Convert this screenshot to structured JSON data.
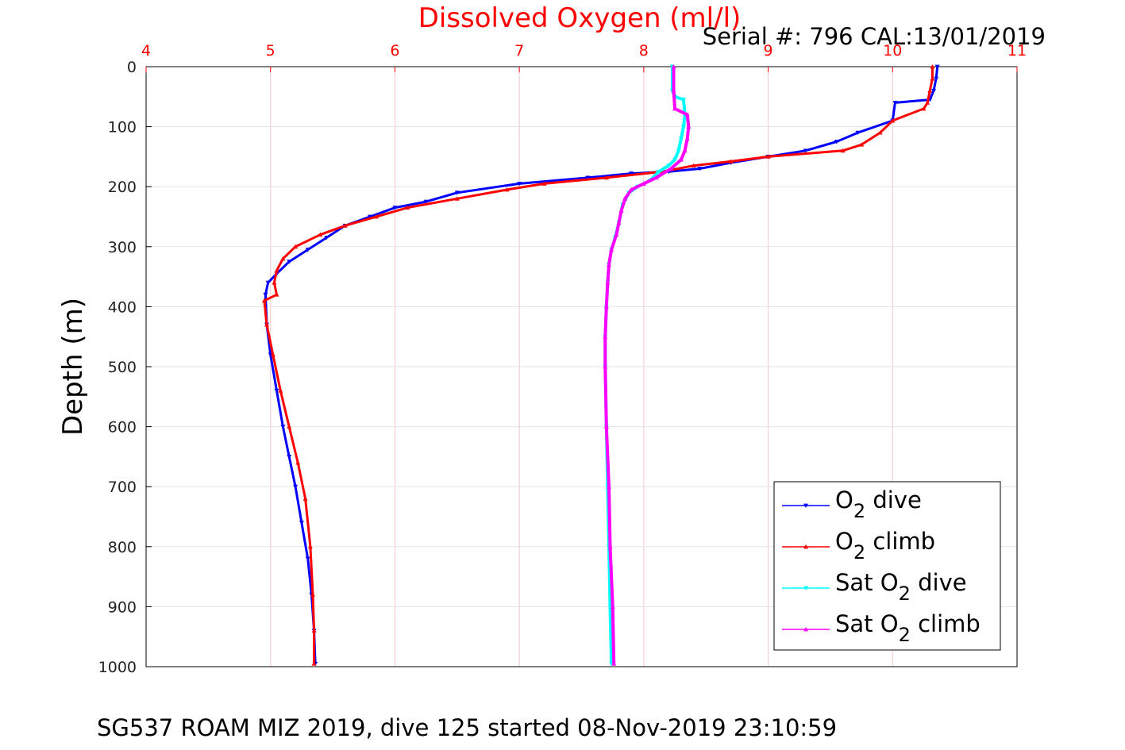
{
  "chart_data": {
    "type": "line",
    "title": "Dissolved Oxygen (ml/l)",
    "subtitle": "Serial #: 796  CAL:13/01/2019",
    "ylabel": "Depth (m)",
    "footer": "SG537 ROAM MIZ 2019, dive 125 started 08-Nov-2019 23:10:59",
    "xlim": [
      4,
      11
    ],
    "ylim": [
      0,
      1000
    ],
    "y_reversed": true,
    "x_axis_position": "top",
    "grid": true,
    "xticks": [
      "4",
      "5",
      "6",
      "7",
      "8",
      "9",
      "10",
      "11"
    ],
    "yticks": [
      "0",
      "100",
      "200",
      "300",
      "400",
      "500",
      "600",
      "700",
      "800",
      "900",
      "1000"
    ],
    "legend": {
      "placement": "lower-right",
      "entries": [
        {
          "prefix": "O",
          "sub": "2",
          "suffix": " dive"
        },
        {
          "prefix": "O",
          "sub": "2",
          "suffix": " climb"
        },
        {
          "prefix": "Sat O",
          "sub": "2",
          "suffix": " dive"
        },
        {
          "prefix": "Sat O",
          "sub": "2",
          "suffix": " climb"
        }
      ]
    },
    "colors": {
      "title": "#ff0000",
      "xtick": "#ff0000",
      "grid": "#f5c6cc",
      "o2_dive": "#0000ff",
      "o2_climb": "#ff0000",
      "sat_dive": "#00ffff",
      "sat_climb": "#ff00ff"
    },
    "series": [
      {
        "key": "o2_dive",
        "marker": "triangle-down",
        "x": [
          10.36,
          10.35,
          10.33,
          10.3,
          10.02,
          10.0,
          9.72,
          9.55,
          9.3,
          9.0,
          8.7,
          8.45,
          8.2,
          7.9,
          7.55,
          7.0,
          6.5,
          6.25,
          6.0,
          5.8,
          5.6,
          5.45,
          5.3,
          5.15,
          5.05,
          4.98,
          4.96,
          4.97,
          5.0,
          5.05,
          5.1,
          5.15,
          5.2,
          5.25,
          5.3,
          5.33,
          5.35,
          5.36
        ],
        "y": [
          0,
          20,
          40,
          55,
          60,
          90,
          110,
          125,
          140,
          150,
          160,
          170,
          175,
          178,
          185,
          195,
          210,
          225,
          235,
          250,
          265,
          285,
          305,
          325,
          345,
          360,
          380,
          430,
          480,
          540,
          600,
          650,
          700,
          760,
          820,
          880,
          940,
          995
        ]
      },
      {
        "key": "o2_climb",
        "marker": "triangle-up",
        "x": [
          10.32,
          10.32,
          10.3,
          10.28,
          10.25,
          10.0,
          9.9,
          9.75,
          9.6,
          9.0,
          8.7,
          8.4,
          8.15,
          7.7,
          7.2,
          6.9,
          6.5,
          6.1,
          5.85,
          5.6,
          5.4,
          5.2,
          5.1,
          5.05,
          5.03,
          5.05,
          4.95,
          4.97,
          5.02,
          5.08,
          5.15,
          5.22,
          5.28,
          5.32,
          5.34,
          5.35,
          5.35
        ],
        "y": [
          0,
          20,
          40,
          60,
          70,
          90,
          110,
          130,
          140,
          150,
          158,
          165,
          175,
          185,
          195,
          205,
          220,
          235,
          250,
          265,
          280,
          300,
          320,
          340,
          360,
          380,
          390,
          430,
          480,
          540,
          600,
          660,
          720,
          800,
          880,
          940,
          995
        ]
      },
      {
        "key": "sat_dive",
        "marker": "triangle-down",
        "x": [
          8.23,
          8.23,
          8.25,
          8.32,
          8.33,
          8.32,
          8.3,
          8.28,
          8.25,
          8.2,
          8.12,
          8.05,
          7.95,
          7.88,
          7.83,
          7.8,
          7.77,
          7.74,
          7.72,
          7.71,
          7.7,
          7.69,
          7.69,
          7.7,
          7.71,
          7.72,
          7.73,
          7.74
        ],
        "y": [
          0,
          40,
          50,
          55,
          80,
          100,
          120,
          140,
          155,
          165,
          175,
          190,
          200,
          210,
          230,
          260,
          285,
          305,
          330,
          360,
          400,
          450,
          500,
          600,
          700,
          800,
          900,
          995
        ]
      },
      {
        "key": "sat_climb",
        "marker": "triangle-up",
        "x": [
          8.24,
          8.24,
          8.25,
          8.35,
          8.36,
          8.35,
          8.33,
          8.3,
          8.22,
          8.1,
          8.0,
          7.9,
          7.85,
          7.82,
          7.8,
          7.78,
          7.74,
          7.72,
          7.71,
          7.7,
          7.69,
          7.69,
          7.7,
          7.72,
          7.73,
          7.75,
          7.76
        ],
        "y": [
          0,
          40,
          70,
          80,
          100,
          120,
          140,
          155,
          170,
          185,
          195,
          205,
          220,
          240,
          260,
          280,
          305,
          330,
          360,
          400,
          450,
          500,
          600,
          700,
          800,
          900,
          995
        ]
      }
    ]
  }
}
